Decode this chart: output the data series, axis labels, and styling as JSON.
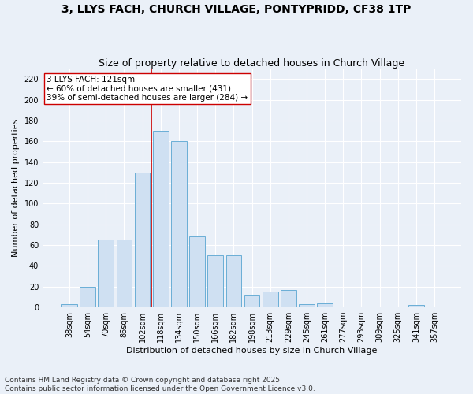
{
  "title": "3, LLYS FACH, CHURCH VILLAGE, PONTYPRIDD, CF38 1TP",
  "subtitle": "Size of property relative to detached houses in Church Village",
  "xlabel": "Distribution of detached houses by size in Church Village",
  "ylabel": "Number of detached properties",
  "categories": [
    "38sqm",
    "54sqm",
    "70sqm",
    "86sqm",
    "102sqm",
    "118sqm",
    "134sqm",
    "150sqm",
    "166sqm",
    "182sqm",
    "198sqm",
    "213sqm",
    "229sqm",
    "245sqm",
    "261sqm",
    "277sqm",
    "293sqm",
    "309sqm",
    "325sqm",
    "341sqm",
    "357sqm"
  ],
  "values": [
    3,
    20,
    65,
    65,
    130,
    170,
    160,
    68,
    50,
    50,
    12,
    15,
    17,
    3,
    4,
    1,
    1,
    0,
    1,
    2,
    1
  ],
  "bar_color": "#cfe0f2",
  "bar_edge_color": "#6aaed6",
  "vline_x_index": 4.5,
  "vline_color": "#cc0000",
  "annotation_text": "3 LLYS FACH: 121sqm\n← 60% of detached houses are smaller (431)\n39% of semi-detached houses are larger (284) →",
  "annotation_box_color": "#ffffff",
  "annotation_box_edge": "#cc0000",
  "ylim": [
    0,
    230
  ],
  "yticks": [
    0,
    20,
    40,
    60,
    80,
    100,
    120,
    140,
    160,
    180,
    200,
    220
  ],
  "bg_color": "#eaf0f8",
  "footer": "Contains HM Land Registry data © Crown copyright and database right 2025.\nContains public sector information licensed under the Open Government Licence v3.0.",
  "title_fontsize": 10,
  "subtitle_fontsize": 9,
  "xlabel_fontsize": 8,
  "ylabel_fontsize": 8,
  "tick_fontsize": 7,
  "annotation_fontsize": 7.5,
  "footer_fontsize": 6.5
}
